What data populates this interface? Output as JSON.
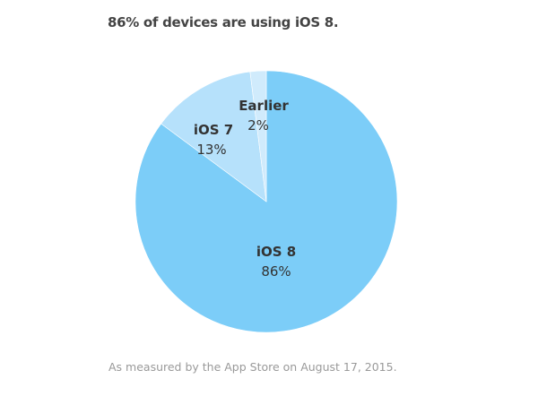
{
  "chart_data": {
    "type": "pie",
    "title": "86% of devices are using iOS 8.",
    "footnote": "As measured by the App Store on August 17, 2015.",
    "slices": [
      {
        "name": "iOS 8",
        "value": 86,
        "label": "86%",
        "color": "#7ccdf8"
      },
      {
        "name": "iOS 7",
        "value": 13,
        "label": "13%",
        "color": "#b6e1fb"
      },
      {
        "name": "Earlier",
        "value": 2,
        "label": "2%",
        "color": "#d0ebfc"
      }
    ]
  }
}
